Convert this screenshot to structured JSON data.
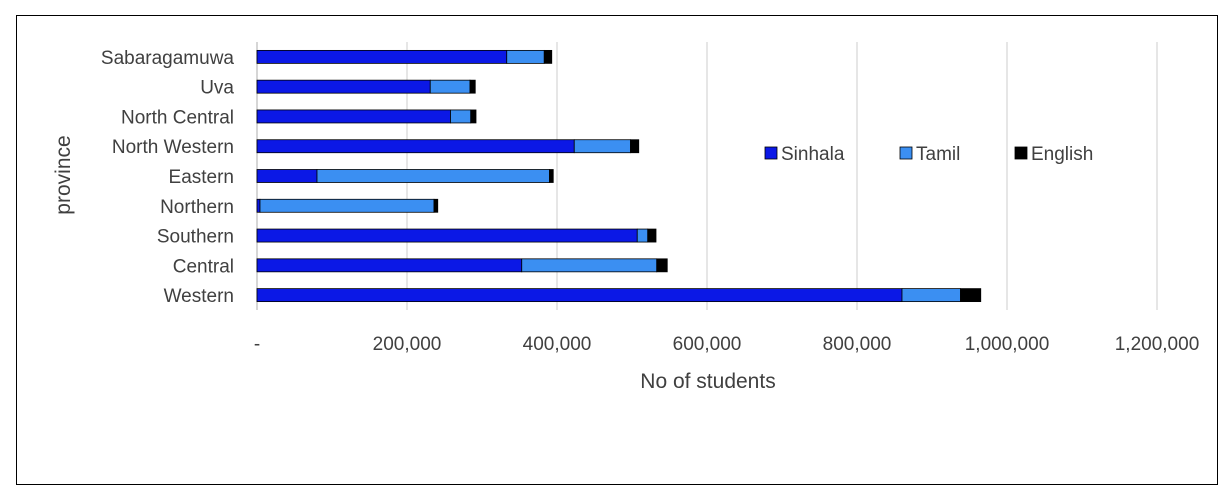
{
  "chart_data": {
    "type": "bar",
    "orientation": "horizontal",
    "stacked": true,
    "title": "",
    "xlabel": "No of students",
    "ylabel": "province",
    "categories": [
      "Sabaragamuwa",
      "Uva",
      "North Central",
      "North Western",
      "Eastern",
      "Northern",
      "Southern",
      "Central",
      "Western"
    ],
    "series": [
      {
        "name": "Sinhala",
        "color": "#0b18e6",
        "values": [
          333000,
          231000,
          258000,
          423000,
          80000,
          4000,
          507000,
          353000,
          860000
        ]
      },
      {
        "name": "Tamil",
        "color": "#3b8ff2",
        "values": [
          50000,
          53000,
          27000,
          75000,
          310000,
          232000,
          14000,
          180000,
          78000
        ]
      },
      {
        "name": "English",
        "color": "#000000",
        "values": [
          10000,
          7000,
          7000,
          11000,
          5000,
          5000,
          11000,
          14000,
          27000
        ]
      }
    ],
    "xlim": [
      0,
      1200000
    ],
    "xticks": [
      0,
      200000,
      400000,
      600000,
      800000,
      1000000,
      1200000
    ],
    "xtick_labels": [
      "-",
      "200,000",
      "400,000",
      "600,000",
      "800,000",
      "1,000,000",
      "1,200,000"
    ],
    "grid": "vertical",
    "legend_position": "inside-right"
  }
}
